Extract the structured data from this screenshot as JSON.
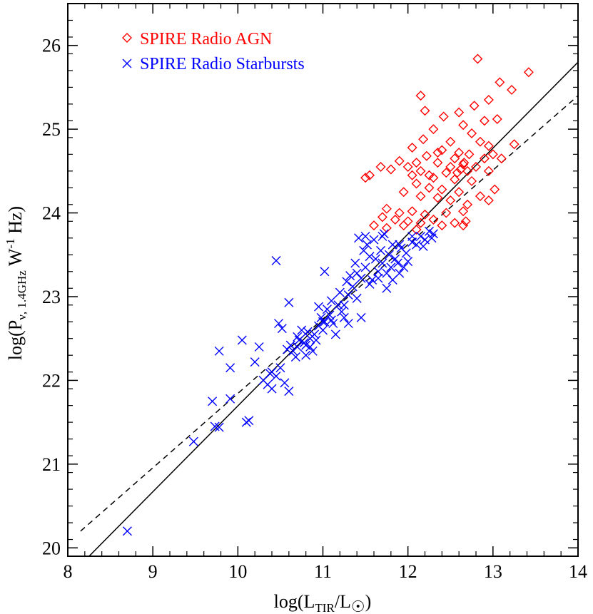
{
  "chart_data": {
    "type": "scatter",
    "xlabel": "log(L_TIR/L_☉)",
    "ylabel": "log(P_ν, 1.4GHz W^-1 Hz)",
    "xlim": [
      8,
      14
    ],
    "ylim": [
      19.9,
      26.5
    ],
    "xticks": [
      8,
      9,
      10,
      11,
      12,
      13,
      14
    ],
    "yticks": [
      20,
      21,
      22,
      23,
      24,
      25,
      26
    ],
    "grid": false,
    "legend_position": "top-left",
    "series": [
      {
        "name": "SPIRE Radio AGN",
        "marker": "diamond",
        "color": "#ff0000",
        "points": [
          [
            12.82,
            25.84
          ],
          [
            13.42,
            25.68
          ],
          [
            12.15,
            25.4
          ],
          [
            13.08,
            25.56
          ],
          [
            13.22,
            25.47
          ],
          [
            12.78,
            25.28
          ],
          [
            12.95,
            25.35
          ],
          [
            12.2,
            25.22
          ],
          [
            12.6,
            25.2
          ],
          [
            12.42,
            25.15
          ],
          [
            13.05,
            25.12
          ],
          [
            12.9,
            25.1
          ],
          [
            12.65,
            25.05
          ],
          [
            12.3,
            25.0
          ],
          [
            12.75,
            24.95
          ],
          [
            12.18,
            24.88
          ],
          [
            12.5,
            24.85
          ],
          [
            12.85,
            24.85
          ],
          [
            13.25,
            24.82
          ],
          [
            12.95,
            24.8
          ],
          [
            12.05,
            24.78
          ],
          [
            12.4,
            24.75
          ],
          [
            12.6,
            24.72
          ],
          [
            12.72,
            24.7
          ],
          [
            13.0,
            24.7
          ],
          [
            12.22,
            24.68
          ],
          [
            12.55,
            24.65
          ],
          [
            12.9,
            24.65
          ],
          [
            11.9,
            24.62
          ],
          [
            12.35,
            24.6
          ],
          [
            12.65,
            24.58
          ],
          [
            12.8,
            24.55
          ],
          [
            13.1,
            24.65
          ],
          [
            12.0,
            24.55
          ],
          [
            12.15,
            24.5
          ],
          [
            12.45,
            24.48
          ],
          [
            12.7,
            24.5
          ],
          [
            12.95,
            24.5
          ],
          [
            11.55,
            24.45
          ],
          [
            11.68,
            24.55
          ],
          [
            11.8,
            24.52
          ],
          [
            12.05,
            24.45
          ],
          [
            12.3,
            24.42
          ],
          [
            12.55,
            24.4
          ],
          [
            12.75,
            24.38
          ],
          [
            13.02,
            24.28
          ],
          [
            11.5,
            24.42
          ],
          [
            12.1,
            24.35
          ],
          [
            12.25,
            24.3
          ],
          [
            12.4,
            24.28
          ],
          [
            12.6,
            24.25
          ],
          [
            12.85,
            24.2
          ],
          [
            11.95,
            24.25
          ],
          [
            12.15,
            24.2
          ],
          [
            12.35,
            24.18
          ],
          [
            12.5,
            24.15
          ],
          [
            12.7,
            24.1
          ],
          [
            12.95,
            24.15
          ],
          [
            11.75,
            24.05
          ],
          [
            11.9,
            24.0
          ],
          [
            12.05,
            24.02
          ],
          [
            12.2,
            23.98
          ],
          [
            12.45,
            24.0
          ],
          [
            12.65,
            24.02
          ],
          [
            11.7,
            23.95
          ],
          [
            11.85,
            23.92
          ],
          [
            12.0,
            23.9
          ],
          [
            12.15,
            23.88
          ],
          [
            12.3,
            23.92
          ],
          [
            12.55,
            23.88
          ],
          [
            11.6,
            23.85
          ],
          [
            11.75,
            23.82
          ],
          [
            11.95,
            23.85
          ],
          [
            12.1,
            23.8
          ],
          [
            12.4,
            23.85
          ],
          [
            12.65,
            23.85
          ],
          [
            12.68,
            23.9
          ],
          [
            12.5,
            24.55
          ],
          [
            12.62,
            24.52
          ],
          [
            12.66,
            24.6
          ],
          [
            12.58,
            24.48
          ],
          [
            12.25,
            24.45
          ],
          [
            12.1,
            24.6
          ],
          [
            12.35,
            24.72
          ]
        ]
      },
      {
        "name": "SPIRE Radio Starbursts",
        "marker": "x",
        "color": "#0000ff",
        "points": [
          [
            8.7,
            20.2
          ],
          [
            9.48,
            21.27
          ],
          [
            9.73,
            21.45
          ],
          [
            9.78,
            21.44
          ],
          [
            9.7,
            21.75
          ],
          [
            9.91,
            21.78
          ],
          [
            10.1,
            21.5
          ],
          [
            10.13,
            21.52
          ],
          [
            9.78,
            22.35
          ],
          [
            9.91,
            22.15
          ],
          [
            10.05,
            22.48
          ],
          [
            10.2,
            22.22
          ],
          [
            10.25,
            22.4
          ],
          [
            10.3,
            22.0
          ],
          [
            10.35,
            21.95
          ],
          [
            10.38,
            22.08
          ],
          [
            10.4,
            21.9
          ],
          [
            10.45,
            22.05
          ],
          [
            10.5,
            22.15
          ],
          [
            10.55,
            21.97
          ],
          [
            10.58,
            22.37
          ],
          [
            10.6,
            21.87
          ],
          [
            10.62,
            22.42
          ],
          [
            10.65,
            22.35
          ],
          [
            10.68,
            22.28
          ],
          [
            10.7,
            22.52
          ],
          [
            10.72,
            22.48
          ],
          [
            10.75,
            22.6
          ],
          [
            10.78,
            22.45
          ],
          [
            10.8,
            22.42
          ],
          [
            10.82,
            22.58
          ],
          [
            10.85,
            22.4
          ],
          [
            10.88,
            22.35
          ],
          [
            10.9,
            22.55
          ],
          [
            10.92,
            22.48
          ],
          [
            10.95,
            22.65
          ],
          [
            10.98,
            22.75
          ],
          [
            11.0,
            22.6
          ],
          [
            11.02,
            22.7
          ],
          [
            11.05,
            22.85
          ],
          [
            11.08,
            22.78
          ],
          [
            11.1,
            22.95
          ],
          [
            11.12,
            22.68
          ],
          [
            11.15,
            22.55
          ],
          [
            11.18,
            22.9
          ],
          [
            11.2,
            23.05
          ],
          [
            11.22,
            22.82
          ],
          [
            11.25,
            22.75
          ],
          [
            11.28,
            23.18
          ],
          [
            11.3,
            23.02
          ],
          [
            11.32,
            23.25
          ],
          [
            11.35,
            23.12
          ],
          [
            11.38,
            23.4
          ],
          [
            11.4,
            23.28
          ],
          [
            11.42,
            23.7
          ],
          [
            11.45,
            23.22
          ],
          [
            11.48,
            23.55
          ],
          [
            11.5,
            23.35
          ],
          [
            11.52,
            23.62
          ],
          [
            11.55,
            23.48
          ],
          [
            11.58,
            23.2
          ],
          [
            11.6,
            23.68
          ],
          [
            11.62,
            23.45
          ],
          [
            11.65,
            23.3
          ],
          [
            11.68,
            23.55
          ],
          [
            11.7,
            23.4
          ],
          [
            11.72,
            23.75
          ],
          [
            11.75,
            23.28
          ],
          [
            11.78,
            23.5
          ],
          [
            11.8,
            23.35
          ],
          [
            11.82,
            23.62
          ],
          [
            11.85,
            23.45
          ],
          [
            11.88,
            23.4
          ],
          [
            11.9,
            23.28
          ],
          [
            11.92,
            23.58
          ],
          [
            11.95,
            23.35
          ],
          [
            11.98,
            23.52
          ],
          [
            12.0,
            23.42
          ],
          [
            12.05,
            23.65
          ],
          [
            12.1,
            23.62
          ],
          [
            12.15,
            23.72
          ],
          [
            12.2,
            23.68
          ],
          [
            12.25,
            23.78
          ],
          [
            12.28,
            23.7
          ],
          [
            12.3,
            23.75
          ],
          [
            10.45,
            23.43
          ],
          [
            10.6,
            22.93
          ],
          [
            10.48,
            22.68
          ],
          [
            10.52,
            22.62
          ],
          [
            11.02,
            23.3
          ],
          [
            10.95,
            22.88
          ],
          [
            11.0,
            22.7
          ],
          [
            11.1,
            22.72
          ],
          [
            11.25,
            22.9
          ],
          [
            11.4,
            22.98
          ],
          [
            11.55,
            23.15
          ],
          [
            11.65,
            23.22
          ],
          [
            11.75,
            23.1
          ],
          [
            11.82,
            23.2
          ],
          [
            11.3,
            22.68
          ],
          [
            11.45,
            22.75
          ],
          [
            10.8,
            22.3
          ],
          [
            10.85,
            22.5
          ],
          [
            10.4,
            22.1
          ],
          [
            10.7,
            22.4
          ],
          [
            11.9,
            23.62
          ],
          [
            12.05,
            23.72
          ],
          [
            12.18,
            23.6
          ],
          [
            11.7,
            23.72
          ],
          [
            11.5,
            23.72
          ]
        ]
      }
    ],
    "fit_lines": [
      {
        "style": "solid",
        "color": "#000000",
        "x": [
          8.25,
          14.0
        ],
        "y": [
          19.9,
          25.8
        ]
      },
      {
        "style": "dashed",
        "color": "#000000",
        "x": [
          8.15,
          14.0
        ],
        "y": [
          20.2,
          25.4
        ]
      }
    ]
  }
}
